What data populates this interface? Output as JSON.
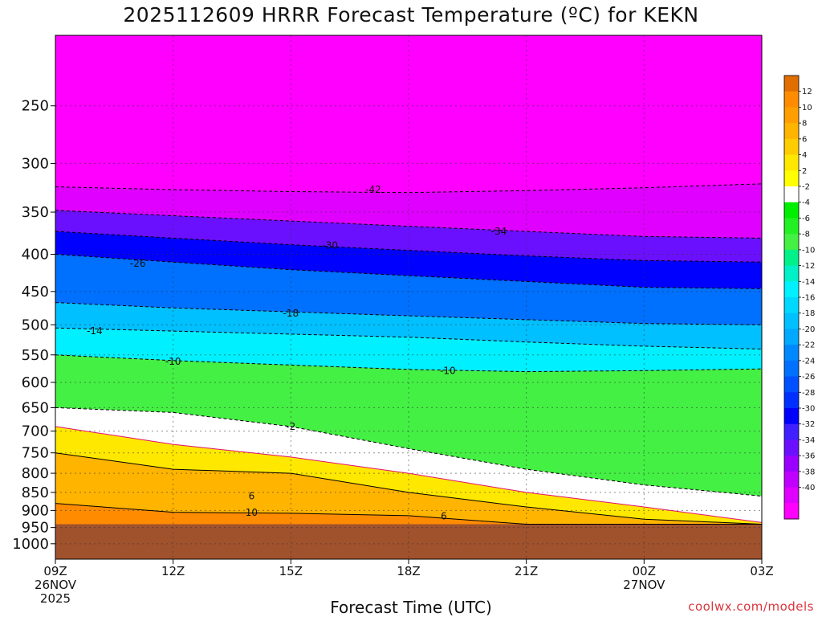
{
  "title": "2025112609 HRRR Forecast Temperature (ºC) for KEKN",
  "chart_data": {
    "type": "heatmap",
    "title": "2025112609 HRRR Forecast Temperature (ºC) for KEKN",
    "xlabel": "Forecast Time (UTC)",
    "ylabel": "",
    "y_scale": "log-pressure",
    "ylim_hPa": [
      1050,
      200
    ],
    "y_ticks": [
      "250",
      "300",
      "350",
      "400",
      "450",
      "500",
      "550",
      "600",
      "650",
      "700",
      "750",
      "800",
      "850",
      "900",
      "950",
      "1000"
    ],
    "x_ticks": [
      {
        "hour": 0,
        "lines": [
          "09Z",
          "26NOV",
          "2025"
        ]
      },
      {
        "hour": 3,
        "lines": [
          "12Z"
        ]
      },
      {
        "hour": 6,
        "lines": [
          "15Z"
        ]
      },
      {
        "hour": 9,
        "lines": [
          "18Z"
        ]
      },
      {
        "hour": 12,
        "lines": [
          "21Z"
        ]
      },
      {
        "hour": 15,
        "lines": [
          "00Z",
          "27NOV"
        ]
      },
      {
        "hour": 18,
        "lines": [
          "03Z"
        ]
      }
    ],
    "surface_pressure_hPa": 940,
    "x_hours": [
      0,
      3,
      6,
      9,
      12,
      15,
      18
    ],
    "isotherms": [
      {
        "temp": -42,
        "pressure": [
          323,
          326,
          328,
          329,
          327,
          324,
          320
        ]
      },
      {
        "temp": -34,
        "pressure": [
          348,
          354,
          360,
          366,
          372,
          378,
          380
        ]
      },
      {
        "temp": -30,
        "pressure": [
          372,
          380,
          388,
          395,
          402,
          408,
          410
        ]
      },
      {
        "temp": -26,
        "pressure": [
          400,
          410,
          420,
          428,
          436,
          444,
          446
        ]
      },
      {
        "temp": -18,
        "pressure": [
          466,
          474,
          480,
          486,
          492,
          498,
          500
        ]
      },
      {
        "temp": -14,
        "pressure": [
          505,
          510,
          515,
          520,
          528,
          535,
          540
        ]
      },
      {
        "temp": -10,
        "pressure": [
          550,
          560,
          568,
          576,
          580,
          578,
          575
        ]
      },
      {
        "temp": -2,
        "pressure": [
          650,
          660,
          690,
          740,
          790,
          830,
          860
        ]
      },
      {
        "temp": 2,
        "pressure": [
          690,
          730,
          760,
          800,
          850,
          890,
          935
        ]
      },
      {
        "temp": 6,
        "pressure": [
          750,
          790,
          800,
          850,
          890,
          925,
          940
        ]
      },
      {
        "temp": 10,
        "pressure": [
          880,
          905,
          908,
          915,
          940,
          940,
          940
        ]
      }
    ],
    "contour_labels": [
      {
        "text": "-42",
        "hour": 8.1,
        "pressure": 326
      },
      {
        "text": "-34",
        "hour": 11.3,
        "pressure": 372
      },
      {
        "text": "-30",
        "hour": 7.0,
        "pressure": 389
      },
      {
        "text": "-26",
        "hour": 2.1,
        "pressure": 412
      },
      {
        "text": "-18",
        "hour": 6.0,
        "pressure": 482
      },
      {
        "text": "-14",
        "hour": 1.0,
        "pressure": 510
      },
      {
        "text": "-10",
        "hour": 3.0,
        "pressure": 562
      },
      {
        "text": "-10",
        "hour": 10.0,
        "pressure": 578
      },
      {
        "text": "-2",
        "hour": 6.0,
        "pressure": 690
      },
      {
        "text": "6",
        "hour": 5.0,
        "pressure": 860
      },
      {
        "text": "6",
        "hour": 9.9,
        "pressure": 917
      },
      {
        "text": "10",
        "hour": 5.0,
        "pressure": 906
      }
    ],
    "colorbar": {
      "labels": [
        "12",
        "10",
        "8",
        "6",
        "4",
        "2",
        "-2",
        "-4",
        "-6",
        "-8",
        "-10",
        "-12",
        "-14",
        "-16",
        "-18",
        "-20",
        "-22",
        "-24",
        "-26",
        "-28",
        "-30",
        "-32",
        "-34",
        "-36",
        "-38",
        "-40"
      ],
      "colors": [
        "#e06e00",
        "#ff8c00",
        "#ff9e00",
        "#ffb400",
        "#ffcc00",
        "#ffe800",
        "#ffff00",
        "#ffffff",
        "#00ee00",
        "#22f022",
        "#44f044",
        "#00f08a",
        "#00f0c8",
        "#00f0ff",
        "#00d8ff",
        "#00c0ff",
        "#00a8ff",
        "#0088ff",
        "#0070ff",
        "#0050ff",
        "#0030ff",
        "#0000ff",
        "#4020ff",
        "#6a10ff",
        "#9a00ff",
        "#c000ff",
        "#e000ff",
        "#ff00ff"
      ]
    }
  },
  "footer": {
    "x_axis_title": "Forecast Time (UTC)",
    "credit": "coolwx.com/models"
  }
}
